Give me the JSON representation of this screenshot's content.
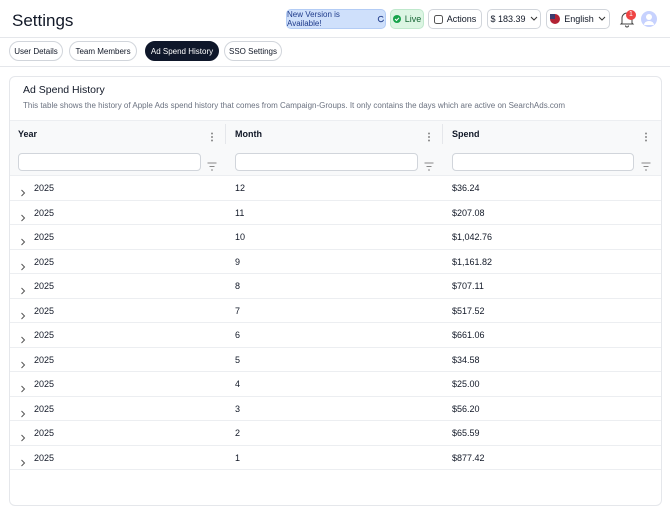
{
  "header": {
    "title": "Settings",
    "update_badge": "New Version is Available!",
    "status_badge": "Live",
    "actions_button": "Actions",
    "balance": "$ 183.39",
    "language": "English",
    "notification_count": "1"
  },
  "tabs": [
    "User Details",
    "Team Members",
    "Ad Spend History",
    "SSO Settings"
  ],
  "active_tab": 2,
  "card": {
    "title": "Ad Spend History",
    "description": "This table shows the history of Apple Ads spend history that comes from Campaign-Groups. It only contains the days which are active on SearchAds.com"
  },
  "table": {
    "columns": [
      "Year",
      "Month",
      "Spend"
    ],
    "rows": [
      [
        "2025",
        "12",
        "$36.24"
      ],
      [
        "2025",
        "11",
        "$207.08"
      ],
      [
        "2025",
        "10",
        "$1,042.76"
      ],
      [
        "2025",
        "9",
        "$1,161.82"
      ],
      [
        "2025",
        "8",
        "$707.11"
      ],
      [
        "2025",
        "7",
        "$517.52"
      ],
      [
        "2025",
        "6",
        "$661.06"
      ],
      [
        "2025",
        "5",
        "$34.58"
      ],
      [
        "2025",
        "4",
        "$25.00"
      ],
      [
        "2025",
        "3",
        "$56.20"
      ],
      [
        "2025",
        "2",
        "$65.59"
      ],
      [
        "2025",
        "1",
        "$877.42"
      ]
    ]
  }
}
